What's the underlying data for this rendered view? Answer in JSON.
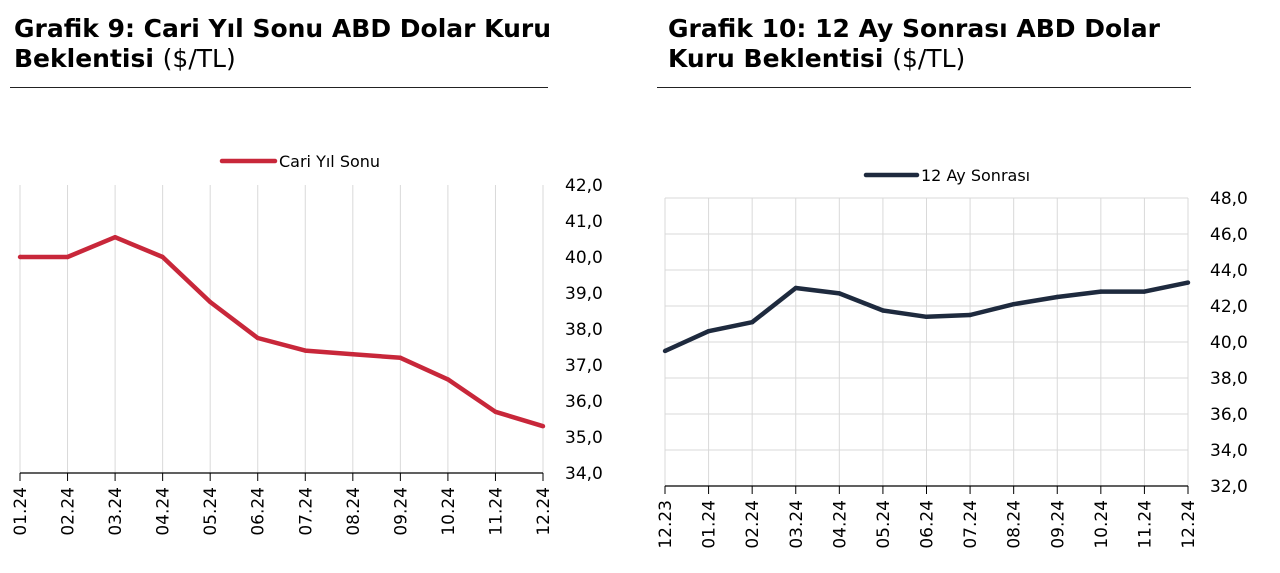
{
  "chart_data": [
    {
      "type": "line",
      "title_bold": "Grafik 9: Cari Yıl Sonu ABD Dolar Kuru Beklentisi",
      "title_unit": "($/TL)",
      "series": [
        {
          "name": "Cari Yıl Sonu",
          "color": "#c8273a",
          "values": [
            40.0,
            40.0,
            40.55,
            40.0,
            38.75,
            37.75,
            37.4,
            37.3,
            37.2,
            36.6,
            35.7,
            35.3
          ]
        }
      ],
      "categories": [
        "01.24",
        "02.24",
        "03.24",
        "04.24",
        "05.24",
        "06.24",
        "07.24",
        "08.24",
        "09.24",
        "10.24",
        "11.24",
        "12.24"
      ],
      "yticks": [
        "34,0",
        "35,0",
        "36,0",
        "37,0",
        "38,0",
        "39,0",
        "40,0",
        "41,0",
        "42,0"
      ],
      "ylim": [
        34,
        42
      ],
      "y_axis_position": "right",
      "legend_position": "top",
      "grid": "vertical"
    },
    {
      "type": "line",
      "title_bold": "Grafik 10: 12 Ay Sonrası ABD Dolar Kuru Beklentisi",
      "title_unit": "($/TL)",
      "series": [
        {
          "name": "12 Ay Sonrası",
          "color": "#1e2a3e",
          "values": [
            39.5,
            40.6,
            41.1,
            43.0,
            42.7,
            41.75,
            41.4,
            41.5,
            42.1,
            42.5,
            42.8,
            42.8,
            43.3
          ]
        }
      ],
      "categories": [
        "12.23",
        "01.24",
        "02.24",
        "03.24",
        "04.24",
        "05.24",
        "06.24",
        "07.24",
        "08.24",
        "09.24",
        "10.24",
        "11.24",
        "12.24"
      ],
      "yticks": [
        "32,0",
        "34,0",
        "36,0",
        "38,0",
        "40,0",
        "42,0",
        "44,0",
        "46,0",
        "48,0"
      ],
      "ylim": [
        32,
        48
      ],
      "y_axis_position": "right",
      "legend_position": "top",
      "grid": "horizontal and vertical"
    }
  ]
}
